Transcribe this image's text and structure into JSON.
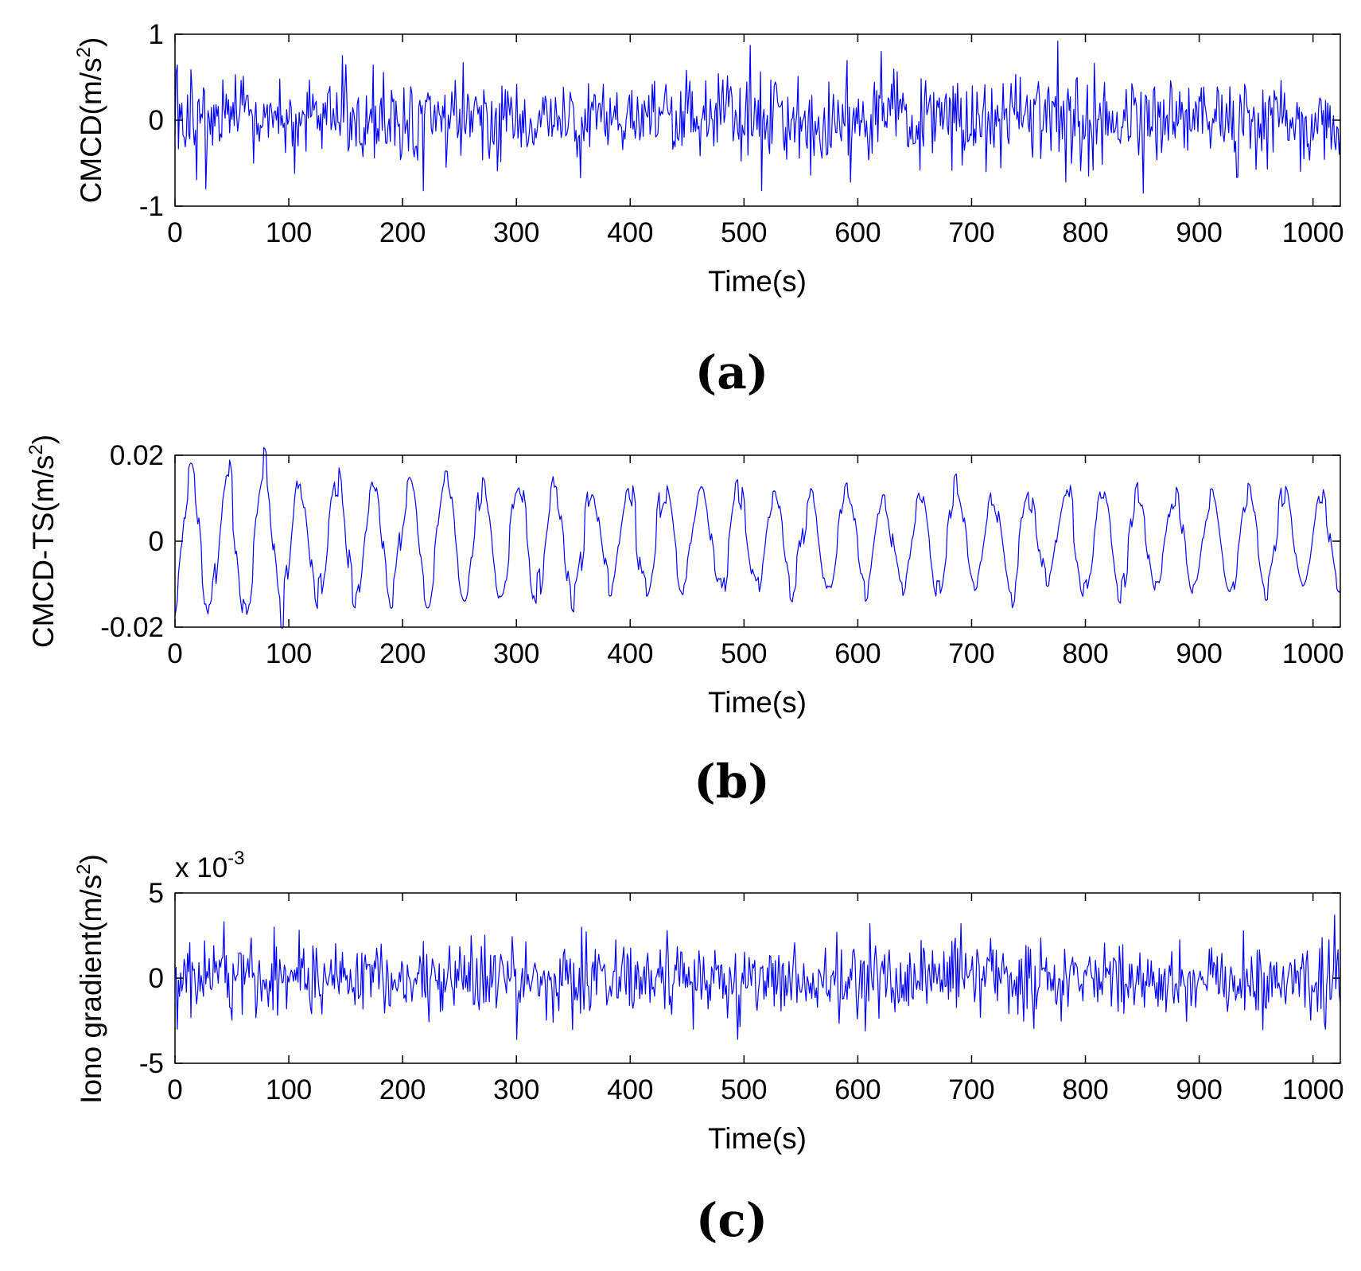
{
  "chart_data": [
    {
      "type": "line",
      "panel_label": "(a)",
      "xlabel": "Time(s)",
      "ylabel": "CMCD(m/s",
      "ylabel_sup": "2",
      "ylabel_close": ")",
      "x_range": [
        0,
        1024
      ],
      "ylim": [
        -1,
        1
      ],
      "xticks": [
        0,
        100,
        200,
        300,
        400,
        500,
        600,
        700,
        800,
        900,
        1000
      ],
      "xtick_labels": [
        "0",
        "100",
        "200",
        "300",
        "400",
        "500",
        "600",
        "700",
        "800",
        "900",
        "1000"
      ],
      "yticks": [
        -1,
        0,
        1
      ],
      "ytick_labels": [
        "-1",
        "0",
        "1"
      ],
      "series": [
        {
          "name": "CMCD",
          "color": "#0000ff",
          "description": "zero-mean noise sampled each second, amplitude mostly within ±0.5 m/s², peaks near +0.9 at t≈505 and t≈775, troughs near -0.85 at t≈850",
          "n_samples": 1024,
          "amplitude": 0.25,
          "peaks": [
            [
              505,
              0.87
            ],
            [
              775,
              0.92
            ],
            [
              147,
              0.75
            ],
            [
              620,
              0.8
            ],
            [
              850,
              -0.85
            ],
            [
              27,
              -0.8
            ],
            [
              218,
              -0.82
            ],
            [
              515,
              -0.82
            ]
          ]
        }
      ]
    },
    {
      "type": "line",
      "panel_label": "(b)",
      "xlabel": "Time(s)",
      "ylabel": "CMCD-TS(m/s",
      "ylabel_sup": "2",
      "ylabel_close": ")",
      "x_range": [
        0,
        1024
      ],
      "ylim": [
        -0.02,
        0.02
      ],
      "xticks": [
        0,
        100,
        200,
        300,
        400,
        500,
        600,
        700,
        800,
        900,
        1000
      ],
      "xtick_labels": [
        "0",
        "100",
        "200",
        "300",
        "400",
        "500",
        "600",
        "700",
        "800",
        "900",
        "1000"
      ],
      "yticks": [
        -0.02,
        0,
        0.02
      ],
      "ytick_labels": [
        "-0.02",
        "0",
        "0.02"
      ],
      "series": [
        {
          "name": "CMCD-TS",
          "color": "#0000ff",
          "description": "quasi-periodic oscillation with period of about 32 s; amplitude about 0.016 for t<300 decaying to about 0.011 afterwards, with small high-frequency noise",
          "n_samples": 1024,
          "period_s": 32,
          "amplitude_start": 0.016,
          "amplitude_end": 0.011,
          "phase_start_s": 14
        }
      ]
    },
    {
      "type": "line",
      "panel_label": "(c)",
      "xlabel": "Time(s)",
      "ylabel": "Iono gradient(m/s",
      "ylabel_sup": "2",
      "ylabel_close": ")",
      "y_scale_label": "x 10",
      "y_scale_exp": "-3",
      "x_range": [
        0,
        1024
      ],
      "ylim": [
        -5,
        5
      ],
      "xticks": [
        0,
        100,
        200,
        300,
        400,
        500,
        600,
        700,
        800,
        900,
        1000
      ],
      "xtick_labels": [
        "0",
        "100",
        "200",
        "300",
        "400",
        "500",
        "600",
        "700",
        "800",
        "900",
        "1000"
      ],
      "yticks": [
        -5,
        0,
        5
      ],
      "ytick_labels": [
        "-5",
        "0",
        "5"
      ],
      "series": [
        {
          "name": "Iono gradient",
          "color": "#0000ff",
          "description": "zero-mean noise in units of 1e-3 m/s², amplitude mostly within ±2.5, max about 3.7 near t≈1018",
          "n_samples": 1024,
          "amplitude": 1.1,
          "peaks": [
            [
              1018,
              3.7
            ],
            [
              610,
              3.2
            ],
            [
              690,
              3.2
            ],
            [
              87,
              3.0
            ],
            [
              2,
              -3.0
            ],
            [
              455,
              -3.0
            ],
            [
              1010,
              -3.0
            ]
          ]
        }
      ]
    }
  ]
}
